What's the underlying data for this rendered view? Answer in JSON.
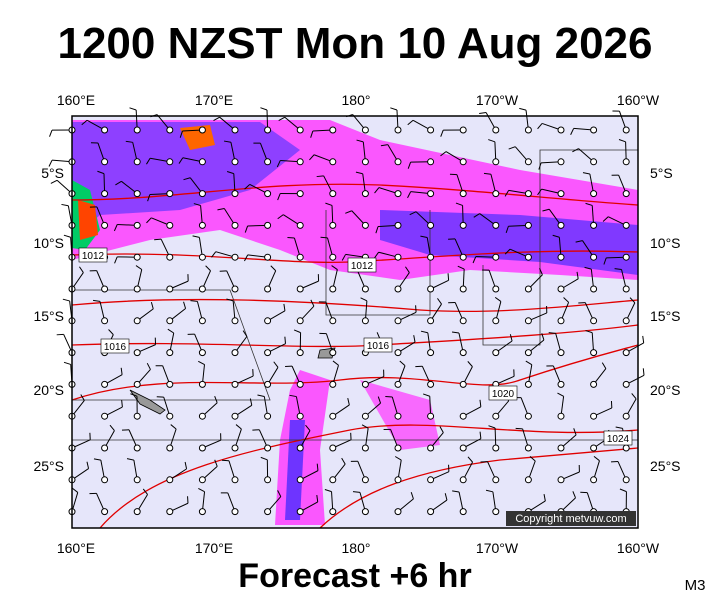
{
  "title": "1200 NZST Mon 10 Aug 2026",
  "lon_labels": [
    "160°E",
    "170°E",
    "180°",
    "170°W",
    "160°W"
  ],
  "lat_labels": [
    "5°S",
    "10°S",
    "15°S",
    "20°S",
    "25°S"
  ],
  "isobar_labels": [
    "1012",
    "1012",
    "1016",
    "1016",
    "1020",
    "1024"
  ],
  "copyright": "Copyright metvuw.com",
  "footer": "Forecast +6 hr",
  "model": "M3"
}
